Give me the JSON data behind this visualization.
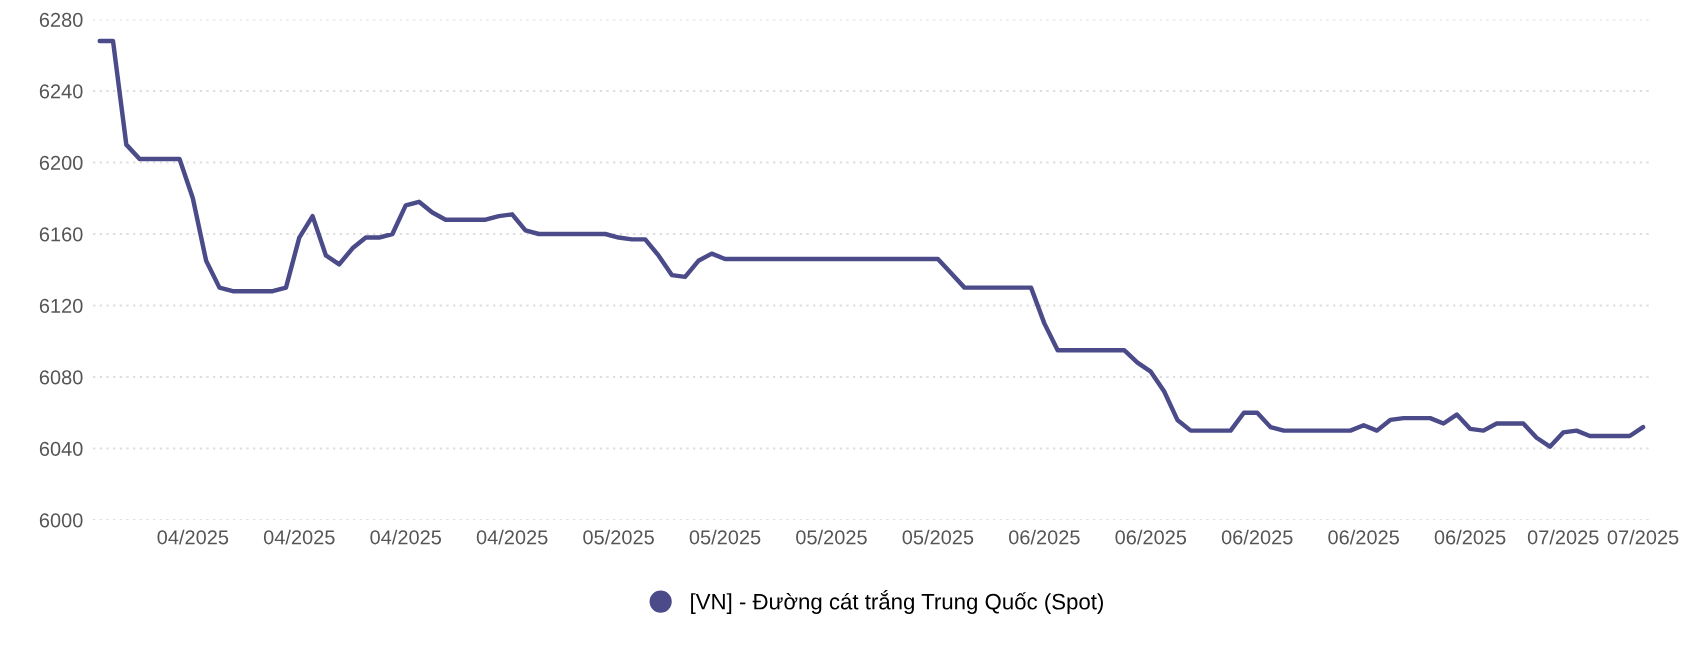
{
  "chart_data": {
    "type": "line",
    "categories": [
      null,
      null,
      null,
      null,
      null,
      null,
      null,
      "04/2025",
      null,
      null,
      null,
      null,
      null,
      null,
      null,
      "04/2025",
      null,
      null,
      null,
      null,
      null,
      null,
      null,
      "04/2025",
      null,
      null,
      null,
      null,
      null,
      null,
      null,
      "04/2025",
      null,
      null,
      null,
      null,
      null,
      null,
      null,
      "05/2025",
      null,
      null,
      null,
      null,
      null,
      null,
      null,
      "05/2025",
      null,
      null,
      null,
      null,
      null,
      null,
      null,
      "05/2025",
      null,
      null,
      null,
      null,
      null,
      null,
      null,
      "05/2025",
      null,
      null,
      null,
      null,
      null,
      null,
      null,
      "06/2025",
      null,
      null,
      null,
      null,
      null,
      null,
      null,
      "06/2025",
      null,
      null,
      null,
      null,
      null,
      null,
      null,
      "06/2025",
      null,
      null,
      null,
      null,
      null,
      null,
      null,
      "06/2025",
      null,
      null,
      null,
      null,
      null,
      null,
      null,
      "06/2025",
      null,
      null,
      null,
      null,
      null,
      null,
      "07/2025",
      null,
      null,
      null,
      null,
      null,
      "07/2025"
    ],
    "series": [
      {
        "name": "[VN] - Đường cát trắng Trung Quốc (Spot)",
        "color": "#4b4b8a",
        "values": [
          6268,
          6268,
          6210,
          6202,
          6202,
          6202,
          6202,
          6180,
          6145,
          6130,
          6128,
          6128,
          6128,
          6128,
          6130,
          6158,
          6170,
          6148,
          6143,
          6152,
          6158,
          6158,
          6160,
          6176,
          6178,
          6172,
          6168,
          6168,
          6168,
          6168,
          6170,
          6171,
          6162,
          6160,
          6160,
          6160,
          6160,
          6160,
          6160,
          6158,
          6157,
          6157,
          6148,
          6137,
          6136,
          6145,
          6149,
          6146,
          6146,
          6146,
          6146,
          6146,
          6146,
          6146,
          6146,
          6146,
          6146,
          6146,
          6146,
          6146,
          6146,
          6146,
          6146,
          6146,
          6138,
          6130,
          6130,
          6130,
          6130,
          6130,
          6130,
          6110,
          6095,
          6095,
          6095,
          6095,
          6095,
          6095,
          6088,
          6083,
          6072,
          6056,
          6050,
          6050,
          6050,
          6050,
          6060,
          6060,
          6052,
          6050,
          6050,
          6050,
          6050,
          6050,
          6050,
          6053,
          6050,
          6056,
          6057,
          6057,
          6057,
          6054,
          6059,
          6051,
          6050,
          6054,
          6054,
          6054,
          6046,
          6041,
          6049,
          6050,
          6047,
          6047,
          6047,
          6047,
          6052
        ]
      }
    ],
    "ylim": [
      6000,
      6280
    ],
    "yticks": [
      6000,
      6040,
      6080,
      6120,
      6160,
      6200,
      6240,
      6280
    ],
    "grid": "y",
    "legend": "bottom",
    "marker": "none",
    "line_style": "solid"
  }
}
